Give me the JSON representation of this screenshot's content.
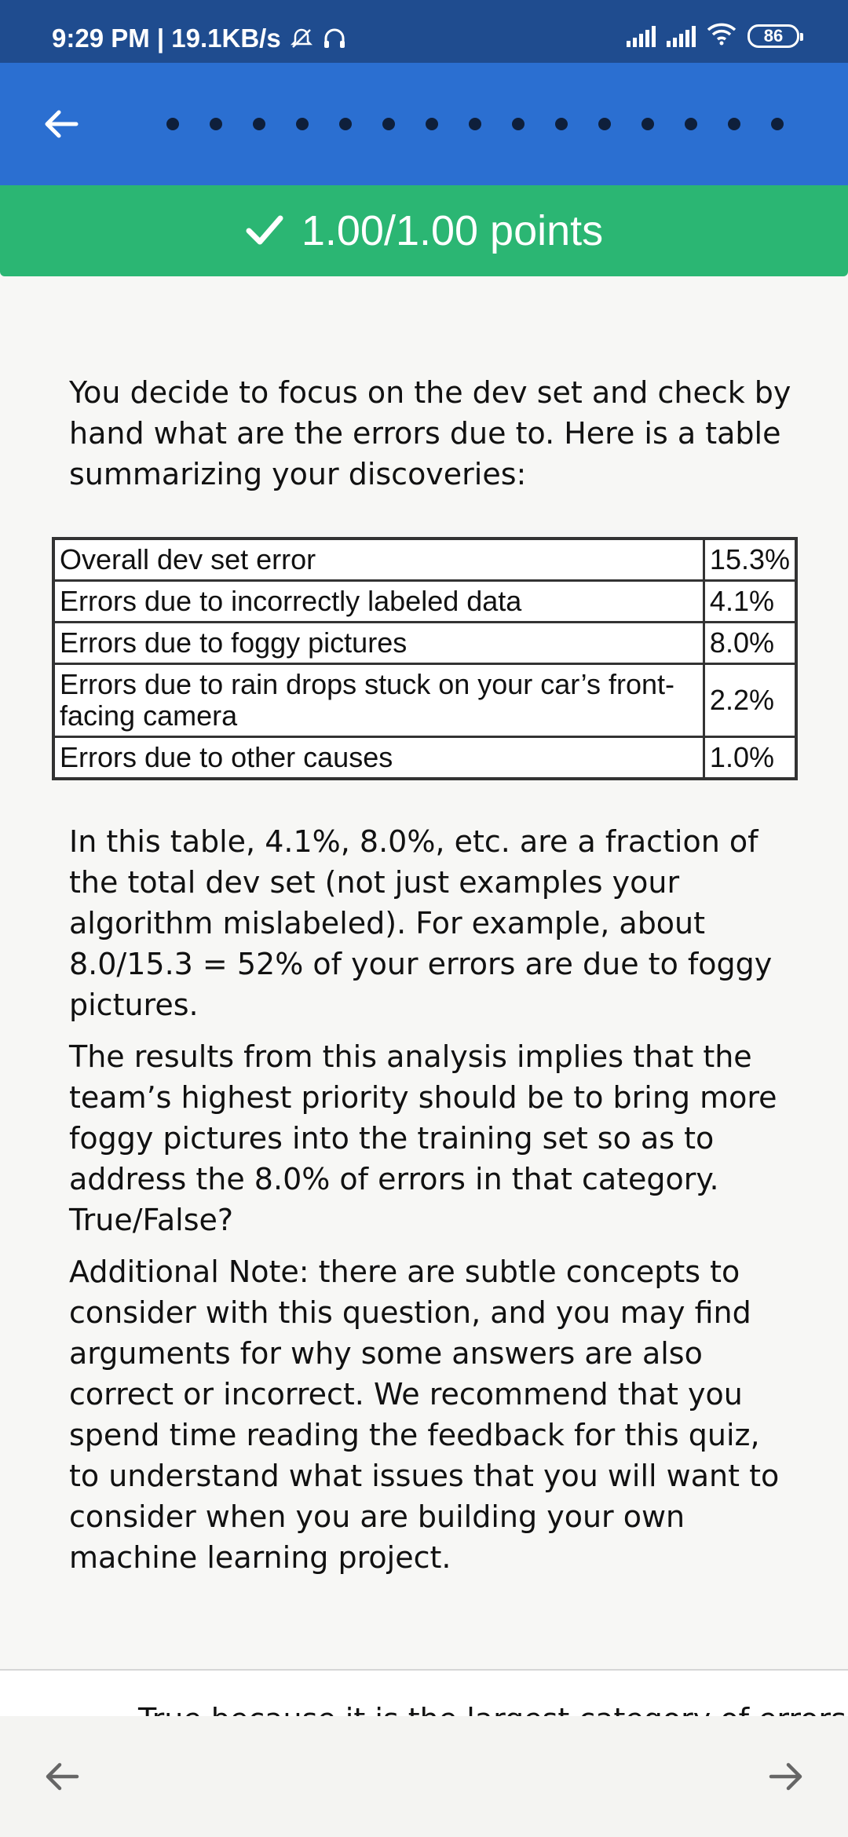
{
  "status_bar": {
    "time_speed": "9:29 PM | 19.1KB/s",
    "battery": "86",
    "icons": [
      "alarm-off-icon",
      "headset-icon",
      "signal-icon",
      "signal-icon",
      "wifi-icon",
      "battery-icon"
    ]
  },
  "app_bar": {
    "back_icon": "arrow-left-icon",
    "progress_dots": 15
  },
  "score": {
    "icon": "checkmark-icon",
    "text": "1.00/1.00 points",
    "color": "#2bb673"
  },
  "question": {
    "intro": "You decide to focus on the dev set and check by hand what are the errors due to. Here is a table summarizing your discoveries:",
    "table": [
      {
        "label": "Overall dev set error",
        "value": "15.3%"
      },
      {
        "label": "Errors due to incorrectly labeled data",
        "value": "4.1%"
      },
      {
        "label": "Errors due to foggy pictures",
        "value": "8.0%"
      },
      {
        "label": "Errors due to rain drops stuck on your car’s front-facing camera",
        "value": "2.2%"
      },
      {
        "label": "Errors due to other causes",
        "value": "1.0%"
      }
    ],
    "explanation": "In this table, 4.1%, 8.0%, etc. are a fraction of the total dev set (not just examples your algorithm mislabeled).  For example, about 8.0/15.3 = 52% of your errors are due to foggy pictures.",
    "prompt": "The results from this analysis implies that the team’s highest priority should be to bring more foggy pictures into the training set so as to address the 8.0% of errors in that category. True/False?",
    "note": "Additional Note: there are subtle concepts to consider with this question, and you may find arguments for why some answers are also correct or incorrect.  We recommend that you spend time reading the feedback for this quiz, to understand what issues that you will want to consider when you are building your own machine learning project."
  },
  "answer_peek": {
    "text": "True because it is the largest category of errors"
  },
  "bottom_nav": {
    "prev_icon": "arrow-left-icon",
    "next_icon": "arrow-right-icon"
  },
  "colors": {
    "status_bar": "#1f4c8f",
    "app_bar": "#2b6fd1",
    "banner": "#2bb673"
  }
}
